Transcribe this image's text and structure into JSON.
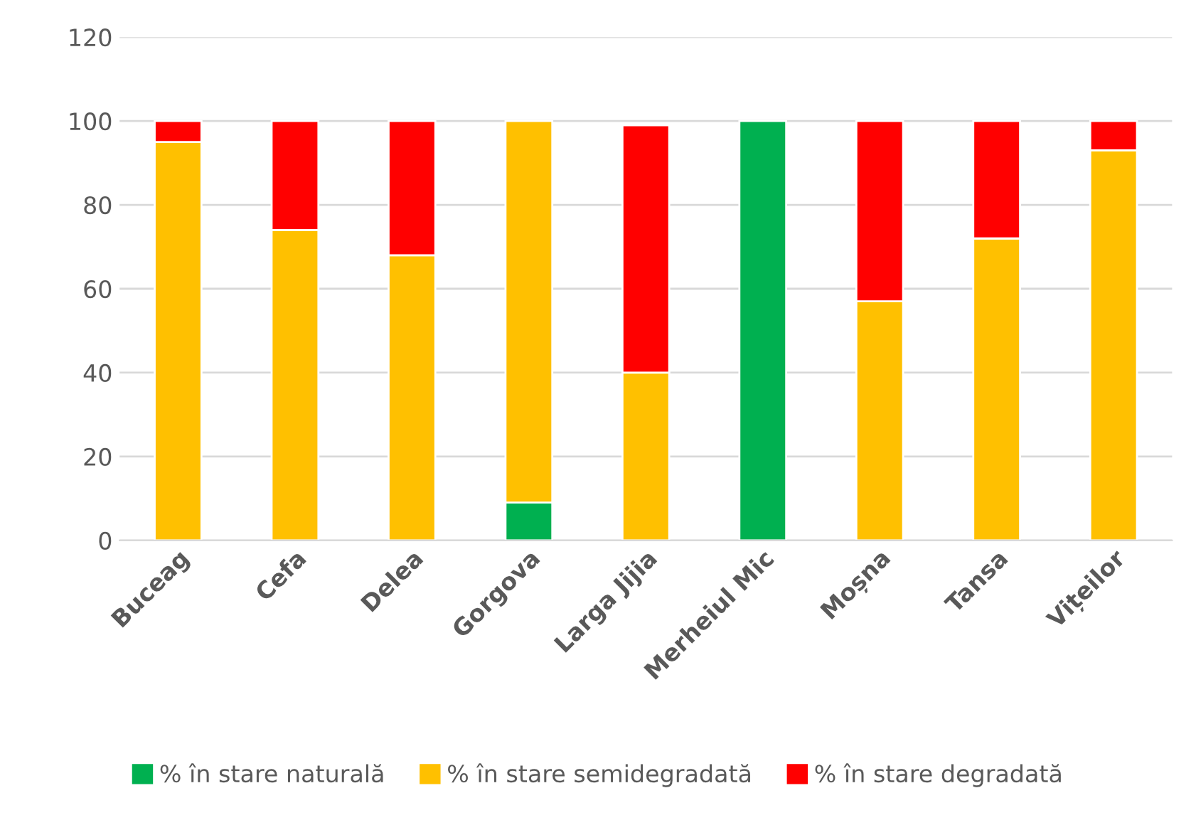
{
  "chart_data": {
    "type": "bar",
    "stacked": true,
    "categories": [
      "Buceag",
      "Cefa",
      "Delea",
      "Gorgova",
      "Larga Jijia",
      "Merheiul Mic",
      "Moșna",
      "Tansa",
      "Vițeilor"
    ],
    "series": [
      {
        "name": "% în stare naturală",
        "color": "#00b050",
        "values": [
          null,
          null,
          null,
          9,
          null,
          100,
          null,
          null,
          null
        ]
      },
      {
        "name": "% în stare semidegradată",
        "color": "#ffc000",
        "values": [
          95,
          74,
          68,
          91,
          40,
          null,
          57,
          72,
          93
        ]
      },
      {
        "name": "% în stare degradată",
        "color": "#ff0000",
        "values": [
          5,
          26,
          32,
          null,
          59,
          null,
          43,
          28,
          7
        ]
      }
    ],
    "ylim": [
      0,
      120
    ],
    "yticks": [
      0,
      20,
      40,
      60,
      80,
      100,
      120
    ],
    "grid": "y",
    "legend": "bottom"
  }
}
